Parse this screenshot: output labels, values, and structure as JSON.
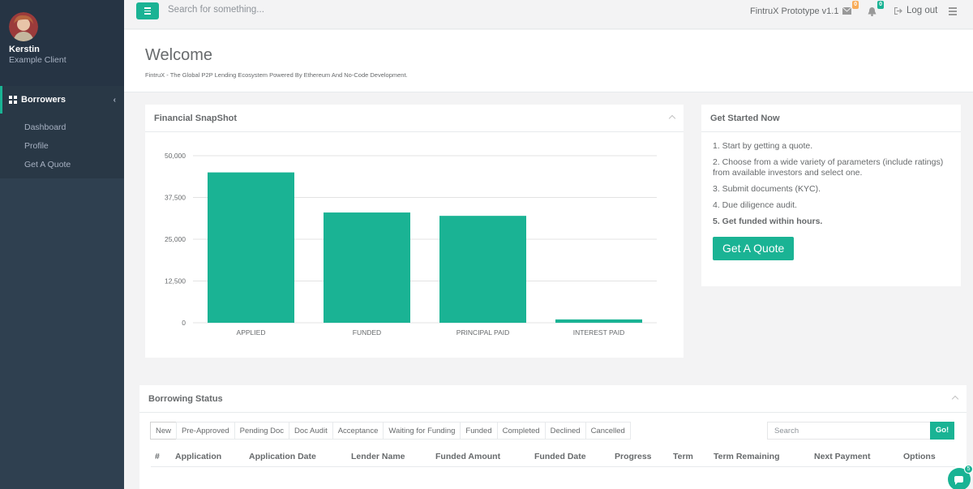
{
  "sidebar": {
    "user_name": "Kerstin",
    "user_role": "Example Client",
    "section_label": "Borrowers",
    "items": [
      {
        "label": "Dashboard"
      },
      {
        "label": "Profile"
      },
      {
        "label": "Get A Quote"
      }
    ]
  },
  "topbar": {
    "search_placeholder": "Search for something...",
    "version": "FintruX Prototype v1.1",
    "messages_count": "0",
    "alerts_count": "0",
    "logout_label": "Log out"
  },
  "header": {
    "title": "Welcome",
    "subtitle": "FintruX - The Global P2P Lending Ecosystem Powered By Ethereum And No-Code Development."
  },
  "snapshot": {
    "title": "Financial SnapShot"
  },
  "chart_data": {
    "type": "bar",
    "categories": [
      "APPLIED",
      "FUNDED",
      "PRINCIPAL PAID",
      "INTEREST PAID"
    ],
    "values": [
      45000,
      33000,
      32000,
      1000
    ],
    "ylim": [
      0,
      50000
    ],
    "yticks": [
      "50,000",
      "37,500",
      "25,000",
      "12,500",
      "0"
    ],
    "ytick_values": [
      50000,
      37500,
      25000,
      12500,
      0
    ],
    "grid": true,
    "color": "#1ab394"
  },
  "get_started": {
    "title": "Get Started Now",
    "steps": [
      "1. Start by getting a quote.",
      "2. Choose from a wide variety of parameters (include ratings) from available investors and select one.",
      "3. Submit documents (KYC).",
      "4. Due diligence audit.",
      "5. Get funded within hours."
    ],
    "button_label": "Get A Quote"
  },
  "borrowing": {
    "title": "Borrowing Status",
    "tabs": [
      "New",
      "Pre-Approved",
      "Pending Doc",
      "Doc Audit",
      "Acceptance",
      "Waiting for Funding",
      "Funded",
      "Completed",
      "Declined",
      "Cancelled"
    ],
    "search_placeholder": "Search",
    "go_label": "Go!",
    "columns": [
      "#",
      "Application",
      "Application Date",
      "Lender Name",
      "Funded Amount",
      "Funded Date",
      "Progress",
      "Term",
      "Term Remaining",
      "Next Payment",
      "Options"
    ]
  },
  "chat": {
    "count": "5"
  }
}
